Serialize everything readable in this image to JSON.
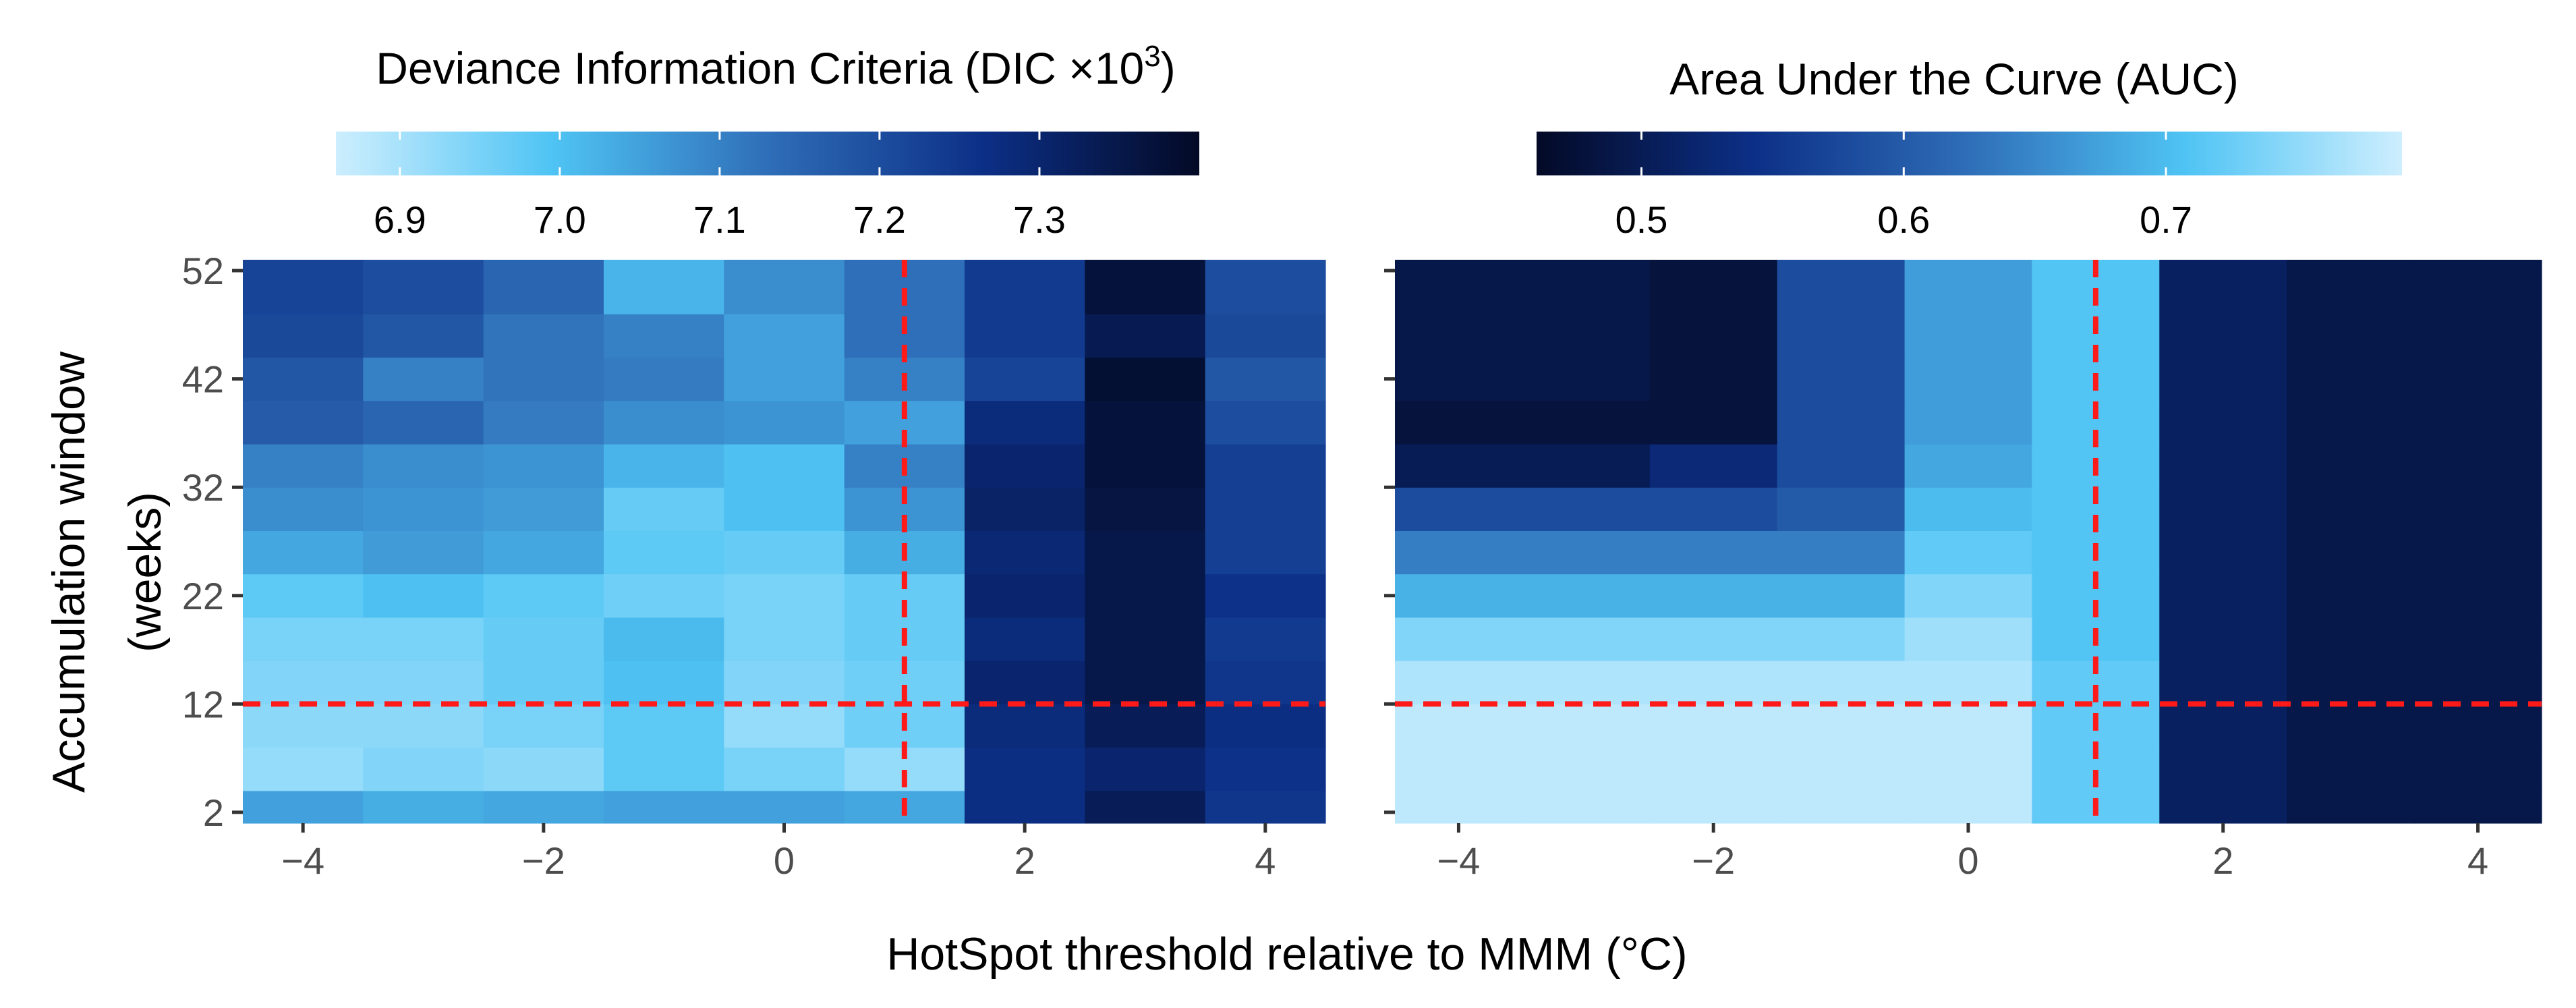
{
  "chart_data": [
    {
      "type": "heatmap",
      "panel": "left",
      "title": "Deviance Information Criteria (DIC ×10",
      "title_sup": "3",
      "title_end": ")",
      "colorbar_ticks": [
        "6.9",
        "7.0",
        "7.1",
        "7.2",
        "7.3"
      ],
      "colorbar_values": [
        6.9,
        7.0,
        7.1,
        7.2,
        7.3
      ],
      "colorbar_range": [
        6.86,
        7.4
      ],
      "colorbar_orientation": "light-to-dark",
      "ylabel_line1": "Accumulation window",
      "ylabel_line2": "(weeks)",
      "xlabel": "HotSpot threshold relative to MMM (°C)",
      "x_ticks": [
        "−4",
        "−2",
        "0",
        "2",
        "4"
      ],
      "x_tick_values": [
        -4,
        -2,
        0,
        2,
        4
      ],
      "y_ticks": [
        "52",
        "42",
        "32",
        "22",
        "12",
        "2"
      ],
      "y_tick_values": [
        52,
        42,
        32,
        22,
        12,
        2
      ],
      "xlim": [
        -4.5,
        4.5
      ],
      "ylim": [
        1,
        53
      ],
      "x_categories": [
        -4,
        -3,
        -2,
        -1,
        0,
        1,
        2,
        3,
        4
      ],
      "y_blocks": [
        [
          1,
          4
        ],
        [
          4,
          8
        ],
        [
          8,
          12
        ],
        [
          12,
          16
        ],
        [
          16,
          20
        ],
        [
          20,
          24
        ],
        [
          24,
          28
        ],
        [
          28,
          32
        ],
        [
          32,
          36
        ],
        [
          36,
          40
        ],
        [
          40,
          44
        ],
        [
          44,
          48
        ],
        [
          48,
          53
        ]
      ],
      "z_values": [
        [
          7.05,
          7.03,
          7.04,
          7.05,
          7.05,
          7.04,
          7.27,
          7.33,
          7.25
        ],
        [
          6.92,
          6.94,
          6.93,
          6.98,
          6.95,
          6.92,
          7.27,
          7.3,
          7.26
        ],
        [
          6.93,
          6.93,
          6.95,
          6.98,
          6.92,
          6.96,
          7.28,
          7.33,
          7.27
        ],
        [
          6.94,
          6.94,
          6.97,
          7.0,
          6.94,
          6.96,
          7.3,
          7.35,
          7.25
        ],
        [
          6.95,
          6.95,
          6.97,
          7.01,
          6.95,
          6.97,
          7.28,
          7.35,
          7.24
        ],
        [
          6.98,
          7.0,
          6.98,
          6.96,
          6.95,
          6.97,
          7.3,
          7.35,
          7.26
        ],
        [
          7.04,
          7.06,
          7.04,
          6.98,
          6.97,
          7.03,
          7.29,
          7.35,
          7.23
        ],
        [
          7.08,
          7.07,
          7.06,
          6.97,
          7.0,
          7.07,
          7.31,
          7.36,
          7.23
        ],
        [
          7.1,
          7.08,
          7.07,
          7.02,
          7.0,
          7.1,
          7.3,
          7.37,
          7.23
        ],
        [
          7.17,
          7.15,
          7.11,
          7.08,
          7.07,
          7.05,
          7.28,
          7.37,
          7.2
        ],
        [
          7.18,
          7.1,
          7.12,
          7.11,
          7.05,
          7.1,
          7.22,
          7.38,
          7.18
        ],
        [
          7.21,
          7.18,
          7.12,
          7.1,
          7.05,
          7.13,
          7.24,
          7.34,
          7.21
        ],
        [
          7.22,
          7.2,
          7.15,
          7.02,
          7.08,
          7.13,
          7.24,
          7.37,
          7.2
        ]
      ],
      "highlight_x": 1,
      "highlight_y": 12
    },
    {
      "type": "heatmap",
      "panel": "right",
      "title": "Area Under the Curve (AUC)",
      "colorbar_ticks": [
        "0.5",
        "0.6",
        "0.7"
      ],
      "colorbar_values": [
        0.5,
        0.6,
        0.7
      ],
      "colorbar_range": [
        0.46,
        0.79
      ],
      "colorbar_orientation": "dark-to-light",
      "x_ticks": [
        "−4",
        "−2",
        "0",
        "2",
        "4"
      ],
      "x_tick_values": [
        -4,
        -2,
        0,
        2,
        4
      ],
      "xlim": [
        -4.5,
        4.5
      ],
      "ylim": [
        1,
        53
      ],
      "x_categories": [
        -4,
        -3,
        -2,
        -1,
        0,
        1,
        2,
        3,
        4
      ],
      "y_blocks": [
        [
          1,
          4
        ],
        [
          4,
          8
        ],
        [
          8,
          12
        ],
        [
          12,
          16
        ],
        [
          16,
          20
        ],
        [
          20,
          24
        ],
        [
          24,
          28
        ],
        [
          28,
          32
        ],
        [
          32,
          36
        ],
        [
          36,
          40
        ],
        [
          40,
          44
        ],
        [
          44,
          48
        ],
        [
          48,
          53
        ]
      ],
      "z_values": [
        [
          0.78,
          0.78,
          0.78,
          0.78,
          0.78,
          0.72,
          0.51,
          0.49,
          0.49
        ],
        [
          0.78,
          0.78,
          0.78,
          0.78,
          0.78,
          0.72,
          0.51,
          0.49,
          0.49
        ],
        [
          0.78,
          0.78,
          0.78,
          0.78,
          0.78,
          0.72,
          0.51,
          0.49,
          0.49
        ],
        [
          0.77,
          0.77,
          0.77,
          0.77,
          0.77,
          0.72,
          0.51,
          0.49,
          0.49
        ],
        [
          0.74,
          0.74,
          0.74,
          0.74,
          0.76,
          0.71,
          0.51,
          0.49,
          0.49
        ],
        [
          0.69,
          0.69,
          0.69,
          0.69,
          0.74,
          0.71,
          0.51,
          0.49,
          0.49
        ],
        [
          0.64,
          0.64,
          0.64,
          0.64,
          0.72,
          0.71,
          0.51,
          0.49,
          0.49
        ],
        [
          0.58,
          0.58,
          0.58,
          0.6,
          0.7,
          0.71,
          0.51,
          0.49,
          0.49
        ],
        [
          0.5,
          0.5,
          0.53,
          0.58,
          0.68,
          0.71,
          0.51,
          0.49,
          0.49
        ],
        [
          0.48,
          0.48,
          0.48,
          0.58,
          0.67,
          0.71,
          0.51,
          0.49,
          0.49
        ],
        [
          0.49,
          0.49,
          0.48,
          0.58,
          0.67,
          0.71,
          0.51,
          0.49,
          0.49
        ],
        [
          0.49,
          0.49,
          0.48,
          0.58,
          0.67,
          0.71,
          0.51,
          0.49,
          0.49
        ],
        [
          0.49,
          0.49,
          0.48,
          0.58,
          0.67,
          0.71,
          0.51,
          0.49,
          0.49
        ]
      ],
      "highlight_x": 1,
      "highlight_y": 12
    }
  ],
  "colors": {
    "scale_light": "#cdeefe",
    "scale_bright": "#4fc4f4",
    "scale_mid": "#2f6eb8",
    "scale_deep": "#0c2f86",
    "scale_dark": "#030a26",
    "highlight_line": "#ff1a1a",
    "tick_text": "#4d4d4d"
  }
}
